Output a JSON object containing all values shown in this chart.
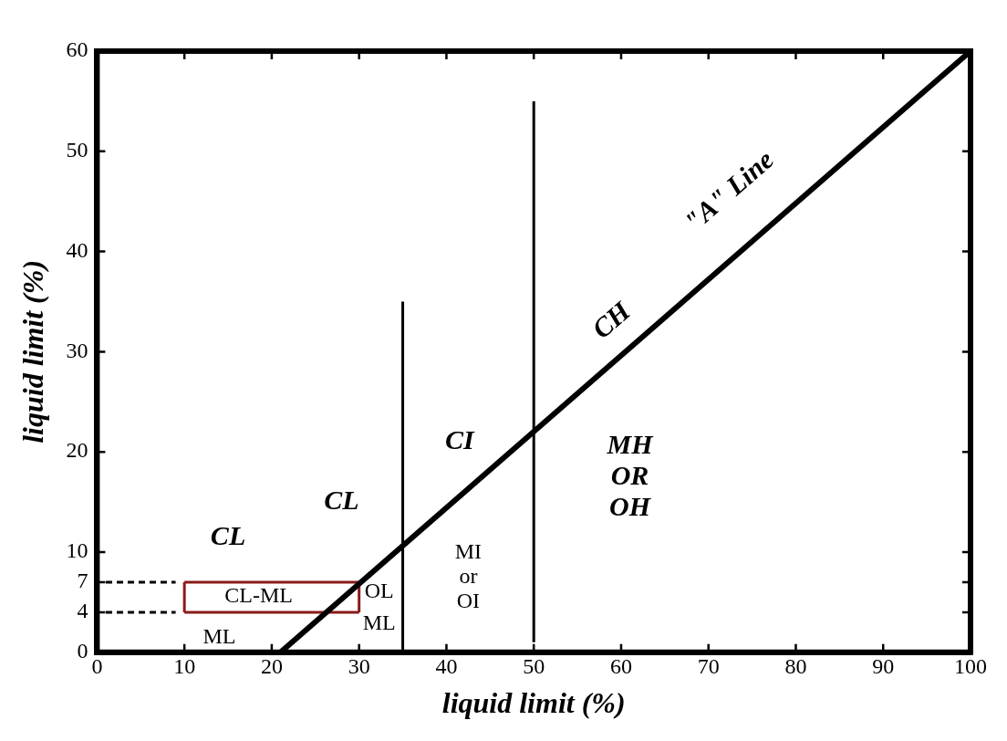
{
  "chart_data": {
    "type": "line",
    "xlabel": "liquid limit (%)",
    "ylabel": "liquid limit (%)",
    "xlim": [
      0,
      100
    ],
    "xticks": [
      0,
      10,
      20,
      30,
      40,
      50,
      60,
      70,
      80,
      90,
      100
    ],
    "ylim": [
      0,
      60
    ],
    "yticks": [
      0,
      4,
      7,
      10,
      20,
      30,
      40,
      50,
      60
    ],
    "series": [
      {
        "color": "#000000",
        "x": [
          21,
          100
        ],
        "values": [
          0,
          60
        ]
      },
      {
        "color": "#000000",
        "x": [
          35,
          35
        ],
        "values": [
          0,
          35
        ]
      },
      {
        "color": "#000000",
        "x": [
          50,
          50
        ],
        "values": [
          1,
          55
        ]
      },
      {
        "color": "#8b1a1a",
        "x": [
          10,
          30
        ],
        "values": [
          7,
          7
        ]
      },
      {
        "color": "#8b1a1a",
        "x": [
          10,
          30
        ],
        "values": [
          4,
          4
        ]
      },
      {
        "color": "#8b1a1a",
        "x": [
          10,
          10
        ],
        "values": [
          4,
          7
        ]
      },
      {
        "color": "#8b1a1a",
        "x": [
          30,
          30
        ],
        "values": [
          4,
          7
        ]
      },
      {
        "color": "#000000",
        "line_style": "dashed",
        "x": [
          1,
          9
        ],
        "values": [
          7,
          7
        ]
      },
      {
        "color": "#000000",
        "line_style": "dashed",
        "x": [
          1,
          9
        ],
        "values": [
          4,
          4
        ]
      }
    ],
    "annotations": [
      "CL",
      "CL",
      "CL-ML",
      "ML",
      "OL",
      "ML",
      "CI",
      "MI\nor\nOI",
      "MH\nOR\nOH",
      "CH",
      "\"A\" Line"
    ]
  }
}
